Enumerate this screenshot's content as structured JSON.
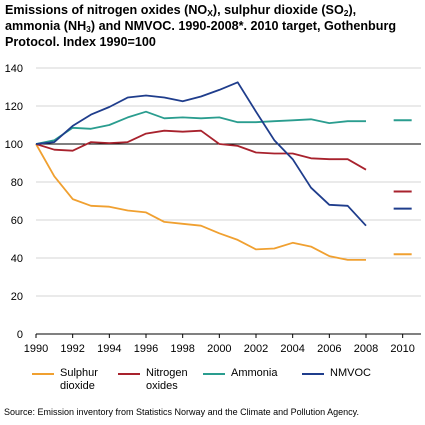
{
  "title": {
    "line1_a": "Emissions of nitrogen oxides (NO",
    "line1_sub1": "X",
    "line1_b": "), sulphur dioxide (SO",
    "line1_sub2": "2",
    "line1_c": "),",
    "line2_a": "ammonia (NH",
    "line2_sub": "3",
    "line2_b": ") and NMVOC. 1990-2008*. 2010 target, Gothenburg",
    "line3": "Protocol. Index 1990=100"
  },
  "source": "Source: Emission inventory from Statistics Norway and the Climate and Pollution Agency.",
  "chart_data": {
    "type": "line",
    "x_ticks": [
      "1990",
      "1992",
      "1994",
      "1996",
      "1998",
      "2000",
      "2002",
      "2004",
      "2006",
      "2008",
      "2010"
    ],
    "y_ticks": [
      "0",
      "20",
      "40",
      "60",
      "80",
      "100",
      "120",
      "140"
    ],
    "ylim": [
      0,
      140
    ],
    "xlim": [
      1990,
      2011
    ],
    "reference_line": 100,
    "grid": "horizontal",
    "legend_position": "bottom",
    "x": [
      1990,
      1991,
      1992,
      1993,
      1994,
      1995,
      1996,
      1997,
      1998,
      1999,
      2000,
      2001,
      2002,
      2003,
      2004,
      2005,
      2006,
      2007,
      2008
    ],
    "series": [
      {
        "name": "Sulphur dioxide",
        "legend_label": [
          "Sulphur",
          "dioxide"
        ],
        "color": "#f0a030",
        "values": [
          100,
          83,
          71,
          67.5,
          67,
          65,
          64,
          59,
          58,
          57,
          53,
          49.5,
          44.5,
          45,
          48,
          46,
          41,
          39,
          39
        ],
        "target_2010": 42
      },
      {
        "name": "Nitrogen oxides",
        "legend_label": [
          "Nitrogen",
          "oxides"
        ],
        "color": "#a8222d",
        "values": [
          100,
          97,
          96.5,
          101,
          100.5,
          101,
          105.5,
          107,
          106.5,
          107,
          100,
          99,
          95.5,
          95,
          95,
          92.5,
          92,
          92,
          86.5
        ],
        "target_2010": 75
      },
      {
        "name": "Ammonia",
        "legend_label": [
          "Ammonia"
        ],
        "color": "#2a9d8f",
        "values": [
          100,
          102,
          108.5,
          108,
          110,
          114,
          117,
          113.5,
          114,
          113.5,
          114,
          111.5,
          111.5,
          112,
          112.5,
          113,
          111,
          112,
          112
        ],
        "target_2010": 112.5
      },
      {
        "name": "NMVOC",
        "legend_label": [
          "NMVOC"
        ],
        "color": "#1f3d8c",
        "values": [
          100,
          101,
          109.5,
          115.5,
          119.5,
          124.5,
          125.5,
          124.5,
          122.5,
          125,
          128.5,
          132.5,
          117,
          102,
          92,
          77,
          68,
          67.5,
          57
        ],
        "target_2010": 66
      }
    ]
  }
}
